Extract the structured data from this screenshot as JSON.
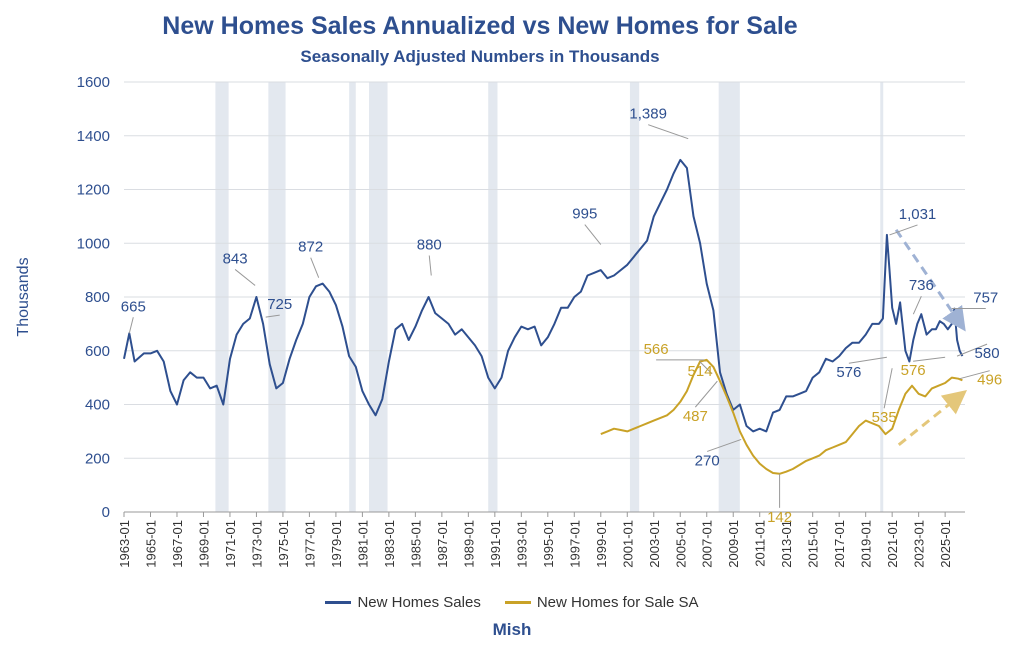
{
  "chart_data": {
    "type": "line",
    "title": "New Homes Sales Annualized vs New Homes for Sale",
    "subtitle": "Seasonally Adjusted Numbers in Thousands",
    "ylabel": "Thousands",
    "xlabel": "",
    "ylim": [
      0,
      1600
    ],
    "xlim": [
      1963.0,
      2026.5
    ],
    "yticks": [
      "0",
      "200",
      "400",
      "600",
      "800",
      "1000",
      "1200",
      "1400",
      "1600"
    ],
    "xticks": [
      "1963-01",
      "1965-01",
      "1967-01",
      "1969-01",
      "1971-01",
      "1973-01",
      "1975-01",
      "1977-01",
      "1979-01",
      "1981-01",
      "1983-01",
      "1985-01",
      "1987-01",
      "1989-01",
      "1991-01",
      "1993-01",
      "1995-01",
      "1997-01",
      "1999-01",
      "2001-01",
      "2003-01",
      "2005-01",
      "2007-01",
      "2009-01",
      "2011-01",
      "2013-01",
      "2015-01",
      "2017-01",
      "2019-01",
      "2021-01",
      "2023-01",
      "2025-01"
    ],
    "grid": "horizontal",
    "legend_position": "bottom",
    "author": "Mish",
    "recessions": [
      [
        1969.9,
        1970.9
      ],
      [
        1973.9,
        1975.2
      ],
      [
        1980.0,
        1980.5
      ],
      [
        1981.5,
        1982.9
      ],
      [
        1990.5,
        1991.2
      ],
      [
        2001.2,
        2001.9
      ],
      [
        2007.9,
        2009.5
      ],
      [
        2020.1,
        2020.3
      ]
    ],
    "series": [
      {
        "name": "New Homes Sales",
        "color": "#2e4f8f",
        "x": [
          1963.0,
          1963.4,
          1963.8,
          1964.5,
          1965.0,
          1965.5,
          1966.0,
          1966.5,
          1967.0,
          1967.5,
          1968.0,
          1968.5,
          1969.0,
          1969.5,
          1970.0,
          1970.5,
          1971.0,
          1971.5,
          1972.0,
          1972.5,
          1973.0,
          1973.5,
          1974.0,
          1974.5,
          1975.0,
          1975.5,
          1976.0,
          1976.5,
          1977.0,
          1977.5,
          1978.0,
          1978.5,
          1979.0,
          1979.5,
          1980.0,
          1980.5,
          1981.0,
          1981.5,
          1982.0,
          1982.5,
          1983.0,
          1983.5,
          1984.0,
          1984.5,
          1985.0,
          1985.5,
          1986.0,
          1986.5,
          1987.0,
          1987.5,
          1988.0,
          1988.5,
          1989.0,
          1989.5,
          1990.0,
          1990.5,
          1991.0,
          1991.5,
          1992.0,
          1992.5,
          1993.0,
          1993.5,
          1994.0,
          1994.5,
          1995.0,
          1995.5,
          1996.0,
          1996.5,
          1997.0,
          1997.5,
          1998.0,
          1998.5,
          1999.0,
          1999.5,
          2000.0,
          2000.5,
          2001.0,
          2001.5,
          2002.0,
          2002.5,
          2003.0,
          2003.5,
          2004.0,
          2004.5,
          2005.0,
          2005.5,
          2006.0,
          2006.5,
          2007.0,
          2007.5,
          2008.0,
          2008.5,
          2009.0,
          2009.5,
          2010.0,
          2010.5,
          2011.0,
          2011.5,
          2012.0,
          2012.5,
          2013.0,
          2013.5,
          2014.0,
          2014.5,
          2015.0,
          2015.5,
          2016.0,
          2016.5,
          2017.0,
          2017.5,
          2018.0,
          2018.5,
          2019.0,
          2019.5,
          2020.0,
          2020.3,
          2020.6,
          2020.8,
          2021.0,
          2021.3,
          2021.6,
          2022.0,
          2022.3,
          2022.6,
          2022.9,
          2023.2,
          2023.6,
          2024.0,
          2024.3,
          2024.6,
          2024.9,
          2025.2,
          2025.5,
          2025.7,
          2025.9,
          2026.1,
          2026.3
        ],
        "values": [
          570,
          665,
          560,
          590,
          590,
          600,
          560,
          450,
          400,
          490,
          520,
          500,
          500,
          460,
          470,
          400,
          570,
          660,
          700,
          720,
          800,
          700,
          550,
          460,
          480,
          570,
          640,
          700,
          800,
          840,
          850,
          820,
          770,
          690,
          580,
          540,
          450,
          400,
          360,
          420,
          560,
          680,
          700,
          640,
          690,
          750,
          800,
          740,
          720,
          700,
          660,
          680,
          650,
          620,
          580,
          500,
          460,
          500,
          600,
          650,
          690,
          680,
          690,
          620,
          650,
          700,
          760,
          760,
          800,
          820,
          880,
          890,
          900,
          870,
          880,
          900,
          920,
          950,
          980,
          1010,
          1100,
          1150,
          1200,
          1260,
          1310,
          1280,
          1100,
          1000,
          850,
          750,
          520,
          440,
          380,
          400,
          320,
          300,
          310,
          300,
          370,
          380,
          430,
          430,
          440,
          450,
          500,
          520,
          570,
          560,
          580,
          610,
          630,
          630,
          660,
          700,
          700,
          720,
          1031,
          900,
          760,
          700,
          780,
          600,
          560,
          640,
          700,
          736,
          660,
          680,
          680,
          710,
          700,
          680,
          700,
          757,
          640,
          600,
          580
        ],
        "labels": [
          {
            "x": 1963.4,
            "y": 665,
            "text": "665"
          },
          {
            "x": 1972.9,
            "y": 843,
            "text": "843"
          },
          {
            "x": 1973.7,
            "y": 725,
            "text": "725"
          },
          {
            "x": 1977.7,
            "y": 872,
            "text": "872"
          },
          {
            "x": 1986.2,
            "y": 880,
            "text": "880"
          },
          {
            "x": 1999.0,
            "y": 995,
            "text": "995"
          },
          {
            "x": 2005.6,
            "y": 1389,
            "text": "1,389"
          },
          {
            "x": 2009.6,
            "y": 270,
            "text": "270"
          },
          {
            "x": 2020.6,
            "y": 576,
            "text": "576"
          },
          {
            "x": 2020.8,
            "y": 1031,
            "text": "1,031"
          },
          {
            "x": 2022.6,
            "y": 736,
            "text": "736"
          },
          {
            "x": 2025.5,
            "y": 757,
            "text": "757"
          },
          {
            "x": 2025.9,
            "y": 580,
            "text": "580"
          }
        ]
      },
      {
        "name": "New Homes for Sale SA",
        "color": "#c9a227",
        "x": [
          1999.0,
          1999.5,
          2000.0,
          2000.5,
          2001.0,
          2001.5,
          2002.0,
          2002.5,
          2003.0,
          2003.5,
          2004.0,
          2004.5,
          2005.0,
          2005.5,
          2006.0,
          2006.5,
          2007.0,
          2007.5,
          2008.0,
          2008.5,
          2009.0,
          2009.5,
          2010.0,
          2010.5,
          2011.0,
          2011.5,
          2012.0,
          2012.5,
          2013.0,
          2013.5,
          2014.0,
          2014.5,
          2015.0,
          2015.5,
          2016.0,
          2016.5,
          2017.0,
          2017.5,
          2018.0,
          2018.5,
          2019.0,
          2019.5,
          2020.0,
          2020.5,
          2021.0,
          2021.5,
          2022.0,
          2022.5,
          2023.0,
          2023.5,
          2024.0,
          2024.5,
          2025.0,
          2025.5,
          2026.0,
          2026.3
        ],
        "values": [
          290,
          300,
          310,
          305,
          300,
          310,
          320,
          330,
          340,
          350,
          360,
          380,
          410,
          450,
          510,
          560,
          566,
          540,
          487,
          430,
          370,
          300,
          250,
          210,
          180,
          160,
          145,
          142,
          150,
          160,
          175,
          190,
          200,
          210,
          230,
          240,
          250,
          260,
          290,
          320,
          340,
          330,
          320,
          290,
          310,
          380,
          440,
          470,
          440,
          430,
          460,
          470,
          480,
          500,
          496,
          490
        ],
        "labels": [
          {
            "x": 2006.8,
            "y": 566,
            "text": "566"
          },
          {
            "x": 2007.4,
            "y": 514,
            "text": "514"
          },
          {
            "x": 2007.8,
            "y": 487,
            "text": "487"
          },
          {
            "x": 2012.5,
            "y": 142,
            "text": "142"
          },
          {
            "x": 2021.0,
            "y": 535,
            "text": "535"
          },
          {
            "x": 2025.0,
            "y": 576,
            "text": "576"
          },
          {
            "x": 2026.1,
            "y": 496,
            "text": "496"
          }
        ]
      }
    ]
  }
}
